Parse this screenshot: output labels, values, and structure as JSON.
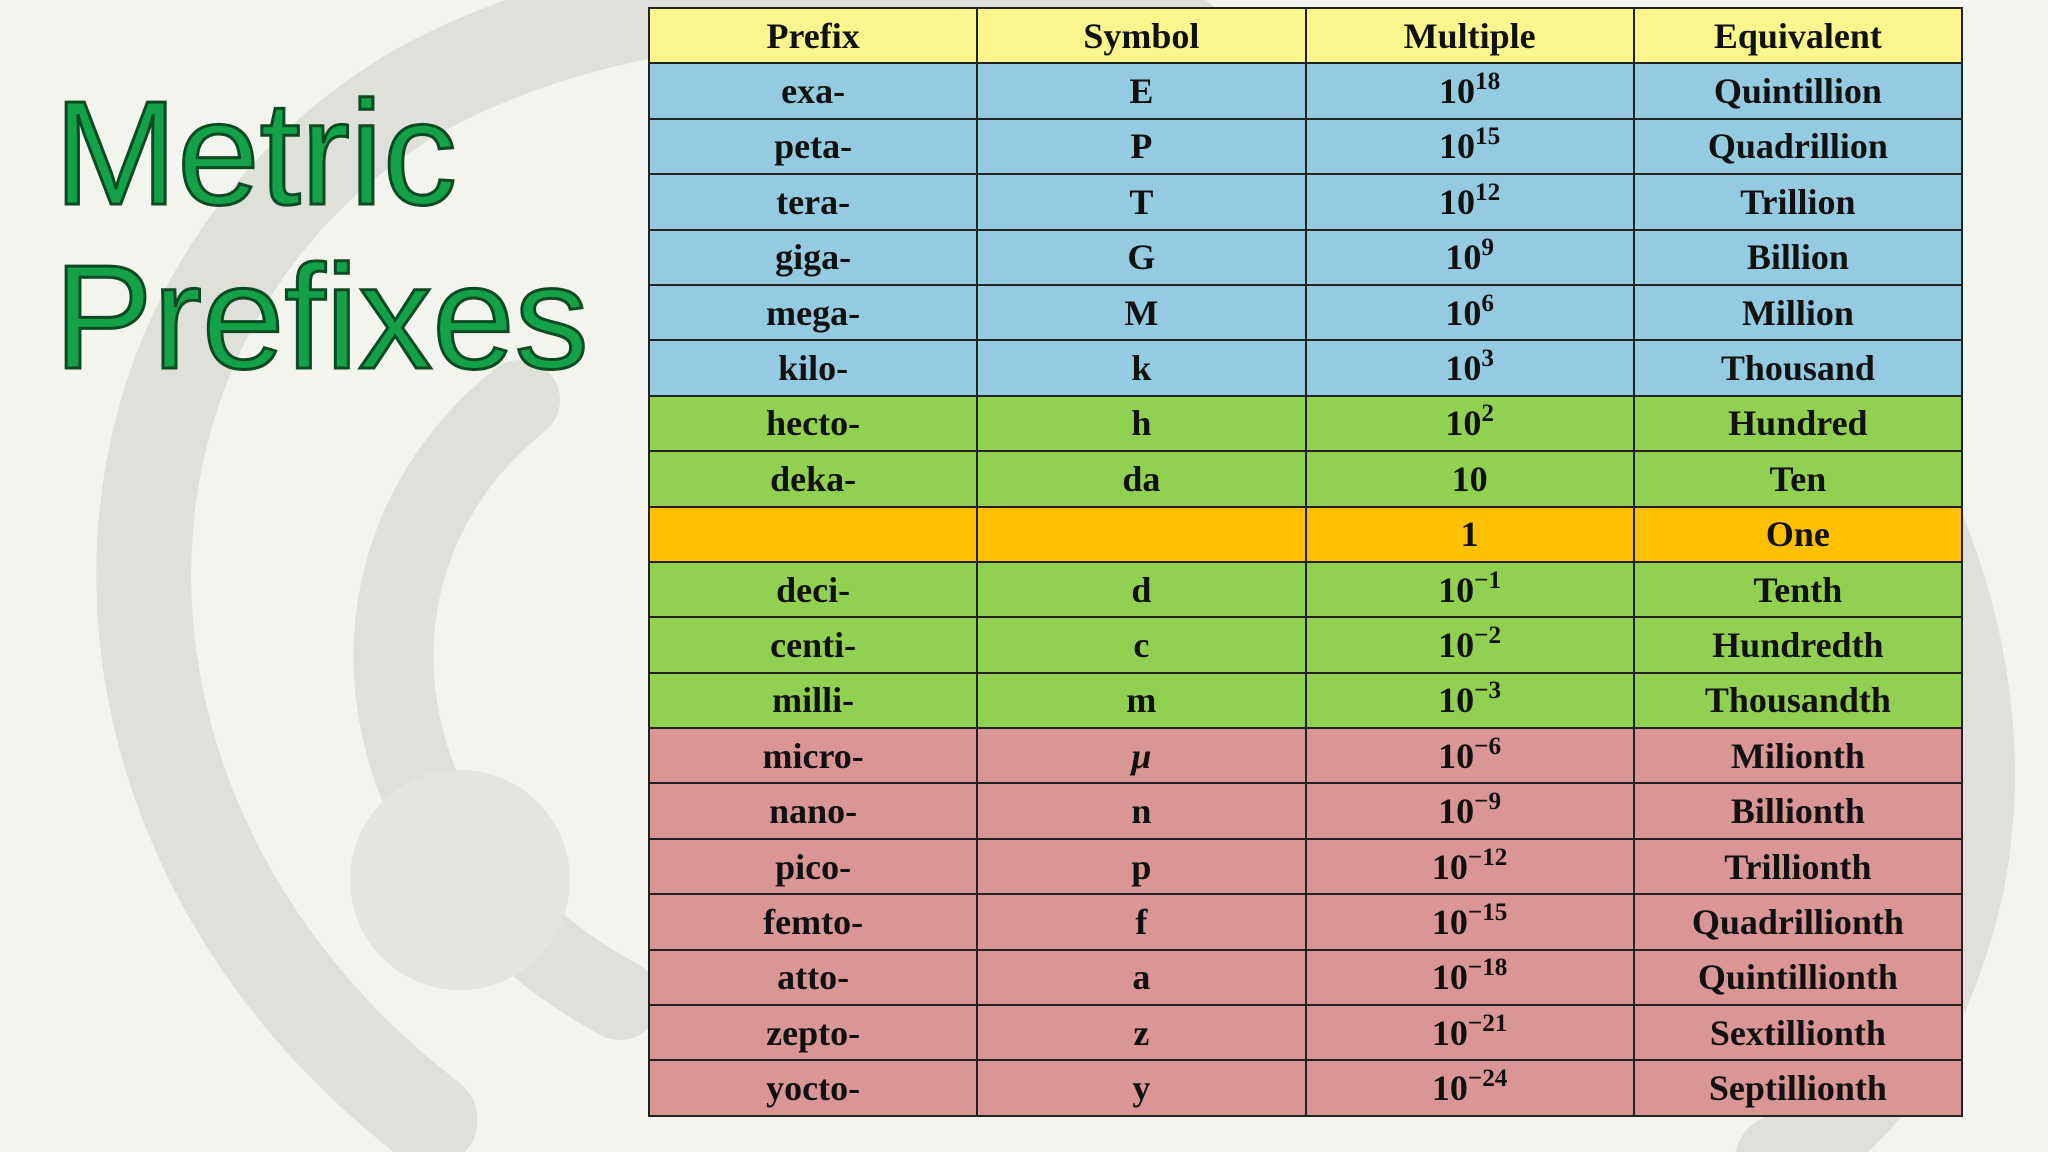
{
  "title": {
    "line1": "Metric",
    "line2": "Prefixes"
  },
  "colors": {
    "title": "#13a24a",
    "header": "#fbf58e",
    "large": "#94cbe0",
    "near_unit": "#92d051",
    "unit": "#ffc000",
    "small": "#da9694"
  },
  "table": {
    "headers": [
      "Prefix",
      "Symbol",
      "Multiple",
      "Equivalent"
    ],
    "rows": [
      {
        "group": "blue",
        "prefix": "exa-",
        "symbol": "E",
        "base": "10",
        "exp": "18",
        "equivalent": "Quintillion"
      },
      {
        "group": "blue",
        "prefix": "peta-",
        "symbol": "P",
        "base": "10",
        "exp": "15",
        "equivalent": "Quadrillion"
      },
      {
        "group": "blue",
        "prefix": "tera-",
        "symbol": "T",
        "base": "10",
        "exp": "12",
        "equivalent": "Trillion"
      },
      {
        "group": "blue",
        "prefix": "giga-",
        "symbol": "G",
        "base": "10",
        "exp": "9",
        "equivalent": "Billion"
      },
      {
        "group": "blue",
        "prefix": "mega-",
        "symbol": "M",
        "base": "10",
        "exp": "6",
        "equivalent": "Million"
      },
      {
        "group": "blue",
        "prefix": "kilo-",
        "symbol": "k",
        "base": "10",
        "exp": "3",
        "equivalent": "Thousand"
      },
      {
        "group": "green",
        "prefix": "hecto-",
        "symbol": "h",
        "base": "10",
        "exp": "2",
        "equivalent": "Hundred"
      },
      {
        "group": "green",
        "prefix": "deka-",
        "symbol": "da",
        "base": "10",
        "exp": "",
        "equivalent": "Ten"
      },
      {
        "group": "orange",
        "prefix": "",
        "symbol": "",
        "base": "1",
        "exp": "",
        "equivalent": "One"
      },
      {
        "group": "green",
        "prefix": "deci-",
        "symbol": "d",
        "base": "10",
        "exp": "−1",
        "equivalent": "Tenth"
      },
      {
        "group": "green",
        "prefix": "centi-",
        "symbol": "c",
        "base": "10",
        "exp": "−2",
        "equivalent": "Hundredth"
      },
      {
        "group": "green",
        "prefix": "milli-",
        "symbol": "m",
        "base": "10",
        "exp": "−3",
        "equivalent": "Thousandth"
      },
      {
        "group": "red",
        "prefix": "micro-",
        "symbol": "μ",
        "base": "10",
        "exp": "−6",
        "equivalent": "Milionth"
      },
      {
        "group": "red",
        "prefix": "nano-",
        "symbol": "n",
        "base": "10",
        "exp": "−9",
        "equivalent": "Billionth"
      },
      {
        "group": "red",
        "prefix": "pico-",
        "symbol": "p",
        "base": "10",
        "exp": "−12",
        "equivalent": "Trillionth"
      },
      {
        "group": "red",
        "prefix": "femto-",
        "symbol": "f",
        "base": "10",
        "exp": "−15",
        "equivalent": "Quadrillionth"
      },
      {
        "group": "red",
        "prefix": "atto-",
        "symbol": "a",
        "base": "10",
        "exp": "−18",
        "equivalent": "Quintillionth"
      },
      {
        "group": "red",
        "prefix": "zepto-",
        "symbol": "z",
        "base": "10",
        "exp": "−21",
        "equivalent": "Sextillionth"
      },
      {
        "group": "red",
        "prefix": "yocto-",
        "symbol": "y",
        "base": "10",
        "exp": "−24",
        "equivalent": "Septillionth"
      }
    ]
  }
}
